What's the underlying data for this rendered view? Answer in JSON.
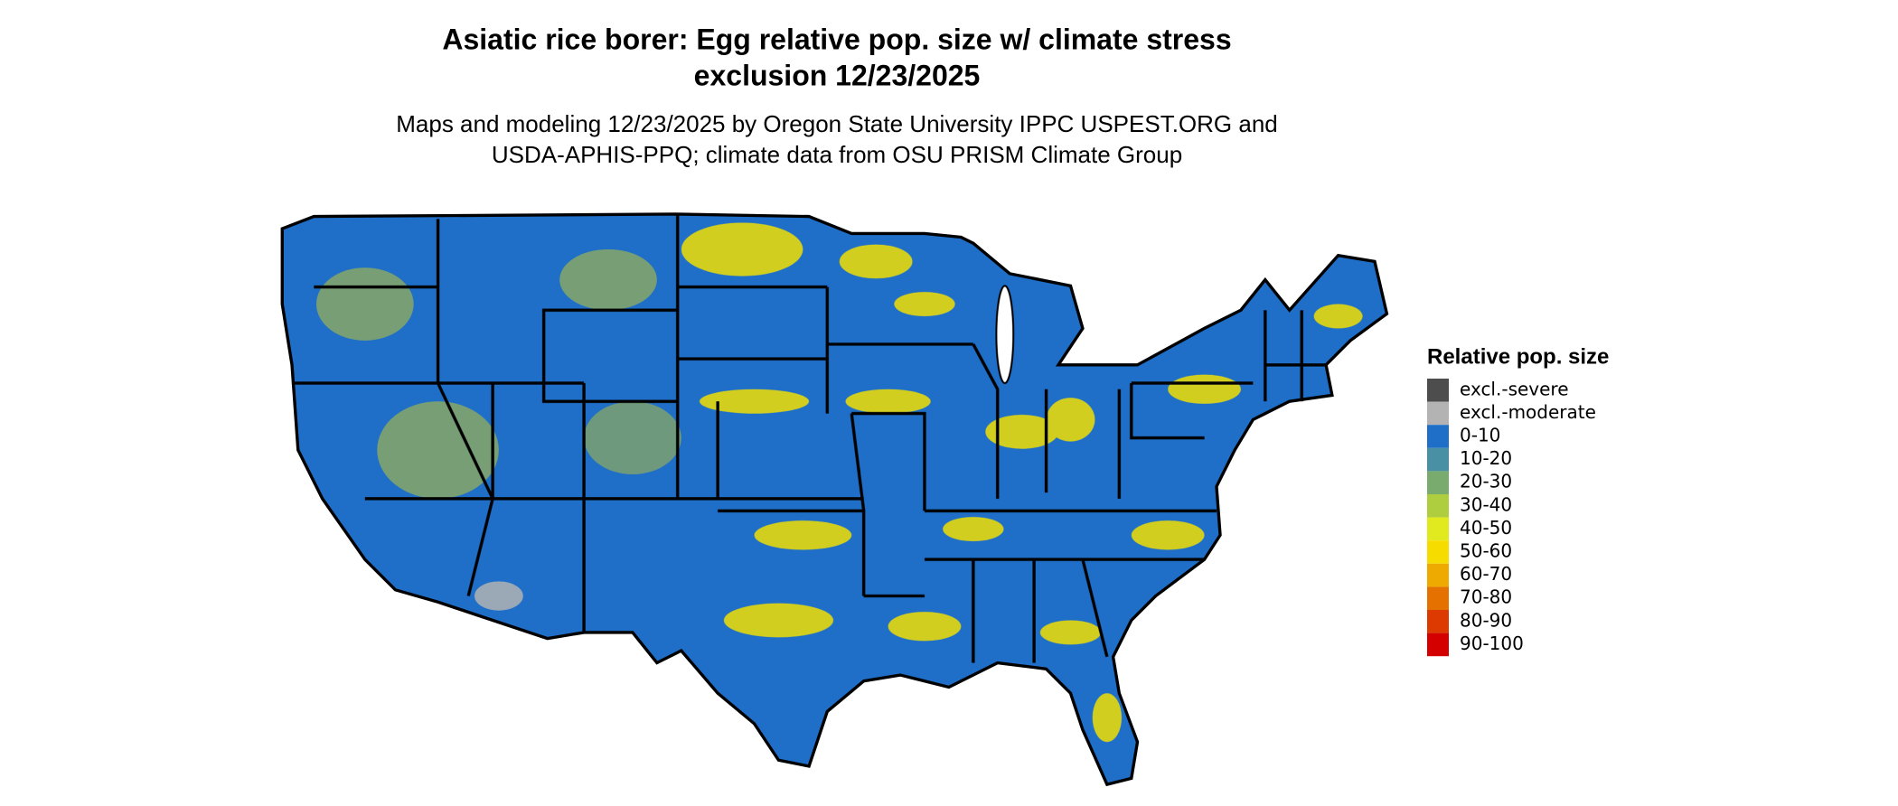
{
  "title": [
    "Asiatic rice borer: Egg relative pop. size w/ climate stress",
    "exclusion 12/23/2025"
  ],
  "subtitle": [
    "Maps and modeling 12/23/2025 by Oregon State University IPPC USPEST.ORG and",
    "USDA-APHIS-PPQ; climate data from OSU PRISM Climate Group"
  ],
  "legend": {
    "title": "Relative pop. size",
    "items": [
      {
        "label": "excl.-severe",
        "color": "#4d4d4d"
      },
      {
        "label": "excl.-moderate",
        "color": "#b3b3b3"
      },
      {
        "label": "0-10",
        "color": "#1f6fc9"
      },
      {
        "label": "10-20",
        "color": "#4a90a4"
      },
      {
        "label": "20-30",
        "color": "#7aab6e"
      },
      {
        "label": "30-40",
        "color": "#aecd3f"
      },
      {
        "label": "40-50",
        "color": "#e0ea1e"
      },
      {
        "label": "50-60",
        "color": "#f7dc00"
      },
      {
        "label": "60-70",
        "color": "#eeaa00"
      },
      {
        "label": "70-80",
        "color": "#e57200"
      },
      {
        "label": "80-90",
        "color": "#dc3a00"
      },
      {
        "label": "90-100",
        "color": "#d40000"
      }
    ]
  }
}
